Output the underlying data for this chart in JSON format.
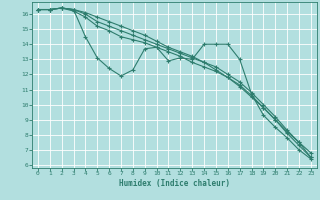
{
  "xlabel": "Humidex (Indice chaleur)",
  "bg_color": "#b2dfdf",
  "grid_color": "#ffffff",
  "line_color": "#2e7d6e",
  "xlim": [
    -0.5,
    23.5
  ],
  "ylim": [
    5.8,
    16.8
  ],
  "yticks": [
    6,
    7,
    8,
    9,
    10,
    11,
    12,
    13,
    14,
    15,
    16
  ],
  "xticks": [
    0,
    1,
    2,
    3,
    4,
    5,
    6,
    7,
    8,
    9,
    10,
    11,
    12,
    13,
    14,
    15,
    16,
    17,
    18,
    19,
    20,
    21,
    22,
    23
  ],
  "lines": [
    {
      "x": [
        0,
        1,
        2,
        3,
        4,
        5,
        6,
        7,
        8,
        9,
        10,
        11,
        12,
        13,
        14,
        15,
        16,
        17,
        18,
        19,
        20,
        21,
        22,
        23
      ],
      "y": [
        16.3,
        16.3,
        16.4,
        16.3,
        14.5,
        13.1,
        12.4,
        11.9,
        12.3,
        13.7,
        13.8,
        12.9,
        13.1,
        13.0,
        14.0,
        14.0,
        14.0,
        13.0,
        10.7,
        9.3,
        8.5,
        7.8,
        7.0,
        6.4
      ]
    },
    {
      "x": [
        0,
        1,
        2,
        3,
        4,
        5,
        6,
        7,
        8,
        9,
        10,
        11,
        12,
        13,
        14,
        15,
        16,
        17,
        18,
        19,
        20,
        21,
        22,
        23
      ],
      "y": [
        16.3,
        16.3,
        16.4,
        16.2,
        15.8,
        15.2,
        14.9,
        14.5,
        14.3,
        14.1,
        13.8,
        13.5,
        13.2,
        12.8,
        12.5,
        12.2,
        11.8,
        11.2,
        10.5,
        9.8,
        9.0,
        8.2,
        7.5,
        6.8
      ]
    },
    {
      "x": [
        0,
        1,
        2,
        3,
        4,
        5,
        6,
        7,
        8,
        9,
        10,
        11,
        12,
        13,
        14,
        15,
        16,
        17,
        18,
        19,
        20,
        21,
        22,
        23
      ],
      "y": [
        16.3,
        16.3,
        16.4,
        16.3,
        16.0,
        15.5,
        15.2,
        14.9,
        14.6,
        14.3,
        14.0,
        13.7,
        13.4,
        13.1,
        12.8,
        12.5,
        12.0,
        11.5,
        10.8,
        10.0,
        9.2,
        8.3,
        7.5,
        6.5
      ]
    },
    {
      "x": [
        0,
        1,
        2,
        3,
        4,
        5,
        6,
        7,
        8,
        9,
        10,
        11,
        12,
        13,
        14,
        15,
        16,
        17,
        18,
        19,
        20,
        21,
        22,
        23
      ],
      "y": [
        16.3,
        16.3,
        16.4,
        16.3,
        16.1,
        15.8,
        15.5,
        15.2,
        14.9,
        14.6,
        14.2,
        13.8,
        13.5,
        13.2,
        12.8,
        12.3,
        11.8,
        11.3,
        10.6,
        9.8,
        9.0,
        8.1,
        7.3,
        6.5
      ]
    }
  ]
}
